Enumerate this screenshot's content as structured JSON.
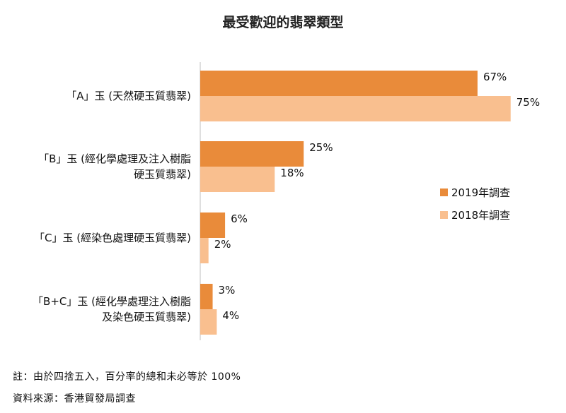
{
  "chart_data": {
    "type": "bar",
    "orientation": "horizontal",
    "title": "最受歡迎的翡翠類型",
    "categories": [
      [
        "「A」玉 (天然硬玉質翡翠)"
      ],
      [
        "「B」玉 (經化學處理及注入樹脂",
        "硬玉質翡翠)"
      ],
      [
        "「C」玉 (經染色處理硬玉質翡翠)"
      ],
      [
        "「B+C」玉 (經化學處理注入樹脂",
        "及染色硬玉質翡翠)"
      ]
    ],
    "series": [
      {
        "name": "2019年調查",
        "color": "#E98B3A",
        "values": [
          67,
          25,
          6,
          3
        ],
        "labels": [
          "67%",
          "25%",
          "6%",
          "3%"
        ]
      },
      {
        "name": "2018年調查",
        "color": "#F9BF8F",
        "values": [
          75,
          18,
          2,
          4
        ],
        "labels": [
          "75%",
          "18%",
          "2%",
          "4%"
        ]
      }
    ],
    "xlim": [
      0,
      100
    ],
    "grid": false,
    "legend_position": "right"
  },
  "notes": {
    "footnote": "註：由於四捨五入，百分率的總和未必等於 100%",
    "source": "資料來源：香港貿發局調查"
  }
}
